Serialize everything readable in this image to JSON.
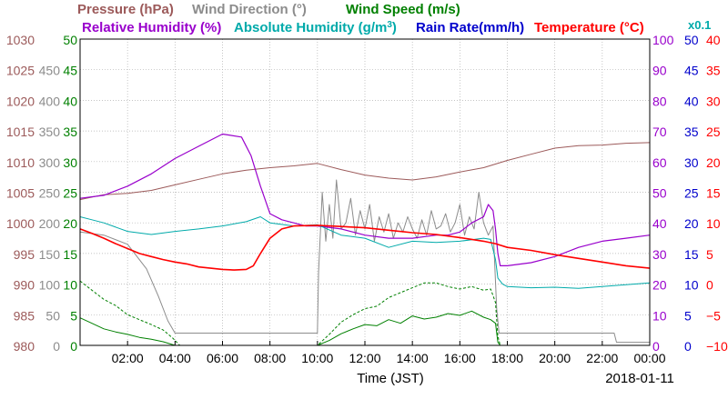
{
  "chart_data": {
    "type": "line",
    "xlabel": "Time (JST)",
    "date_label": "2018-01-11",
    "x_ticks": [
      "02:00",
      "04:00",
      "06:00",
      "08:00",
      "10:00",
      "12:00",
      "14:00",
      "16:00",
      "18:00",
      "20:00",
      "22:00",
      "00:00"
    ],
    "xlim": [
      "00:00",
      "24:00"
    ],
    "grid": true,
    "legend_row1": [
      {
        "id": "pressure",
        "label": "Pressure (hPa)",
        "color": "#9c5a5a"
      },
      {
        "id": "winddir",
        "label": "Wind Direction (°)",
        "color": "#8c8c8c"
      },
      {
        "id": "windspeed",
        "label": "Wind Speed (m/s)",
        "color": "#008000"
      }
    ],
    "legend_row2": [
      {
        "id": "humidity",
        "label": "Relative Humidity (%)",
        "color": "#9900cc"
      },
      {
        "id": "abshum",
        "label": "Absolute Humidity (g/m",
        "sup": "3",
        "close": ")",
        "color": "#00aaaa"
      },
      {
        "id": "rain",
        "label": "Rain Rate(mm/h)",
        "color": "#0000cc"
      },
      {
        "id": "temp",
        "label": "Temperature (°C)",
        "color": "#ff0000"
      }
    ],
    "x01_label": "x0.1",
    "axes": {
      "pressure": {
        "color": "#9c5a5a",
        "labels": [
          "1030",
          "1025",
          "1020",
          "1015",
          "1010",
          "1005",
          "1000",
          "995",
          "990",
          "985",
          "980"
        ]
      },
      "winddir": {
        "color": "#8c8c8c",
        "labels": [
          "450",
          "400",
          "350",
          "300",
          "250",
          "200",
          "150",
          "100",
          "50",
          "0"
        ]
      },
      "windspeed": {
        "color": "#008000",
        "labels": [
          "50",
          "45",
          "40",
          "35",
          "30",
          "25",
          "20",
          "15",
          "10",
          "5",
          "0"
        ]
      },
      "humidity": {
        "color": "#9900cc",
        "labels": [
          "100",
          "90",
          "80",
          "70",
          "60",
          "50",
          "40",
          "30",
          "20",
          "10",
          "0"
        ]
      },
      "rain": {
        "color": "#0000cc",
        "labels": [
          "50",
          "45",
          "40",
          "35",
          "30",
          "25",
          "20",
          "15",
          "10",
          "5",
          "0"
        ]
      },
      "temp": {
        "color": "#ff0000",
        "labels": [
          "40",
          "35",
          "30",
          "25",
          "20",
          "15",
          "10",
          "5",
          "0",
          "−5",
          "−10"
        ]
      }
    },
    "series": [
      {
        "name": "Pressure (hPa)",
        "color": "#9c5a5a",
        "ylim": [
          980,
          1030
        ],
        "x": [
          0,
          0.5,
          1,
          2,
          3,
          4,
          5,
          6,
          7,
          8,
          9,
          10,
          11,
          12,
          13,
          14,
          15,
          16,
          17,
          18,
          19,
          20,
          21,
          22,
          23,
          24
        ],
        "values": [
          1003.8,
          1004.2,
          1004.6,
          1004.8,
          1005.3,
          1006.2,
          1007.1,
          1008.0,
          1008.6,
          1009.0,
          1009.3,
          1009.7,
          1008.7,
          1007.8,
          1007.3,
          1007.0,
          1007.5,
          1008.3,
          1009.0,
          1010.2,
          1011.2,
          1012.2,
          1012.6,
          1012.7,
          1013.0,
          1013.1
        ]
      },
      {
        "name": "Wind Direction (°)",
        "color": "#8c8c8c",
        "ylim": [
          0,
          500
        ],
        "x": [
          0,
          1,
          2,
          2.8,
          3.3,
          3.7,
          4.0,
          10.0,
          10.05,
          10.2,
          10.35,
          10.5,
          10.65,
          10.8,
          11.0,
          11.2,
          11.4,
          11.6,
          11.8,
          12.0,
          12.2,
          12.4,
          12.6,
          12.8,
          13.0,
          13.2,
          13.4,
          13.6,
          13.8,
          14.0,
          14.2,
          14.4,
          14.6,
          14.8,
          15.0,
          15.2,
          15.4,
          15.6,
          15.8,
          16.0,
          16.2,
          16.4,
          16.6,
          16.8,
          17.0,
          17.2,
          17.4,
          17.55,
          17.65,
          22.5,
          22.6,
          24
        ],
        "values": [
          185,
          180,
          165,
          125,
          80,
          40,
          20,
          20,
          120,
          250,
          170,
          230,
          175,
          270,
          190,
          200,
          240,
          180,
          220,
          190,
          230,
          170,
          210,
          185,
          215,
          175,
          200,
          185,
          210,
          190,
          175,
          205,
          180,
          220,
          190,
          195,
          215,
          185,
          200,
          230,
          180,
          210,
          190,
          250,
          200,
          180,
          195,
          60,
          20,
          20,
          5,
          5
        ]
      },
      {
        "name": "Wind Speed (m/s) avg",
        "color": "#008000",
        "ylim": [
          0,
          50
        ],
        "x": [
          0,
          0.5,
          1,
          1.5,
          2,
          2.5,
          3,
          3.5,
          4,
          10,
          10.5,
          11,
          11.5,
          12,
          12.5,
          13,
          13.5,
          14,
          14.5,
          15,
          15.5,
          16,
          16.5,
          17,
          17.3,
          17.5,
          17.6,
          17.7,
          18,
          20,
          24
        ],
        "values": [
          4.5,
          3.6,
          2.7,
          2.2,
          1.8,
          1.3,
          1.0,
          0.6,
          0.0,
          0.0,
          0.8,
          1.9,
          2.7,
          3.4,
          3.2,
          4.2,
          3.6,
          4.8,
          4.3,
          4.6,
          5.2,
          4.9,
          5.6,
          4.6,
          4.2,
          3.6,
          0.5,
          0.0,
          0.0,
          0.0,
          0.0
        ]
      },
      {
        "name": "Wind Speed (m/s) gust",
        "color": "#008000",
        "ylim": [
          0,
          50
        ],
        "x": [
          0,
          0.5,
          1,
          1.5,
          2,
          2.5,
          3,
          3.5,
          3.9,
          4.2,
          10,
          10.5,
          11,
          11.5,
          12,
          12.5,
          13,
          13.5,
          14,
          14.5,
          15,
          15.5,
          16,
          16.5,
          17,
          17.3,
          17.5,
          17.6,
          17.7,
          18,
          20,
          24
        ],
        "values": [
          10.5,
          9.0,
          7.5,
          6.5,
          5.0,
          4.2,
          3.4,
          2.5,
          1.2,
          0.0,
          0.0,
          1.8,
          3.8,
          5.0,
          6.0,
          6.4,
          7.8,
          8.6,
          9.4,
          10.2,
          10.2,
          9.6,
          9.2,
          9.6,
          9.0,
          9.2,
          7.0,
          1.5,
          0.0,
          0.0,
          0.0,
          0.0
        ]
      },
      {
        "name": "Relative Humidity (%)",
        "color": "#9900cc",
        "ylim": [
          0,
          100
        ],
        "x": [
          0,
          1,
          2,
          3,
          4,
          5,
          6,
          6.8,
          7.2,
          7.6,
          8,
          8.5,
          9,
          9.5,
          10,
          11,
          12,
          13,
          14,
          15,
          15.5,
          16,
          16.5,
          17,
          17.2,
          17.4,
          17.5,
          17.6,
          17.7,
          18,
          19,
          20,
          21,
          22,
          23,
          24
        ],
        "values": [
          48,
          49,
          52,
          56,
          61,
          65,
          69,
          68,
          62,
          52,
          43,
          41,
          40,
          39,
          39,
          38,
          36,
          35,
          35,
          36,
          36,
          37,
          40,
          42,
          46,
          44,
          38,
          30,
          26,
          26,
          27,
          29,
          32,
          34,
          35,
          36
        ]
      },
      {
        "name": "Absolute Humidity (g/m3)",
        "color": "#00aaaa",
        "ylim": [
          0,
          50
        ],
        "x": [
          0,
          0.5,
          1,
          2,
          3,
          4,
          5,
          6,
          7,
          7.6,
          8,
          9,
          10,
          11,
          12,
          13,
          14,
          15,
          16,
          17,
          17.3,
          17.5,
          17.6,
          17.8,
          18,
          19,
          20,
          21,
          22,
          23,
          24
        ],
        "values": [
          21,
          20.5,
          20,
          18.6,
          18.1,
          18.6,
          19,
          19.5,
          20.2,
          21,
          20,
          19.5,
          19.7,
          18,
          17.5,
          16,
          17,
          16.8,
          17,
          17.5,
          17.3,
          14,
          11,
          10,
          9.6,
          9.4,
          9.5,
          9.3,
          9.6,
          9.9,
          10.2
        ]
      },
      {
        "name": "Temperature (°C)",
        "color": "#ff0000",
        "ylim": [
          -10,
          40
        ],
        "x": [
          0,
          0.5,
          1,
          1.5,
          2,
          2.5,
          3,
          3.5,
          4,
          4.5,
          5,
          5.5,
          6,
          6.5,
          7,
          7.3,
          7.6,
          8,
          8.5,
          9,
          10,
          11,
          12,
          13,
          14,
          15,
          16,
          17,
          17.5,
          18,
          19,
          20,
          21,
          22,
          23,
          24
        ],
        "values": [
          9.0,
          8.3,
          7.5,
          6.6,
          5.8,
          5.0,
          4.5,
          4.0,
          3.6,
          3.3,
          2.8,
          2.6,
          2.4,
          2.3,
          2.4,
          3.0,
          5.0,
          7.5,
          9.0,
          9.5,
          9.6,
          9.4,
          9.2,
          8.8,
          8.4,
          8.1,
          7.6,
          7.0,
          6.6,
          6.0,
          5.5,
          4.8,
          4.2,
          3.6,
          3.0,
          2.6
        ]
      }
    ]
  }
}
